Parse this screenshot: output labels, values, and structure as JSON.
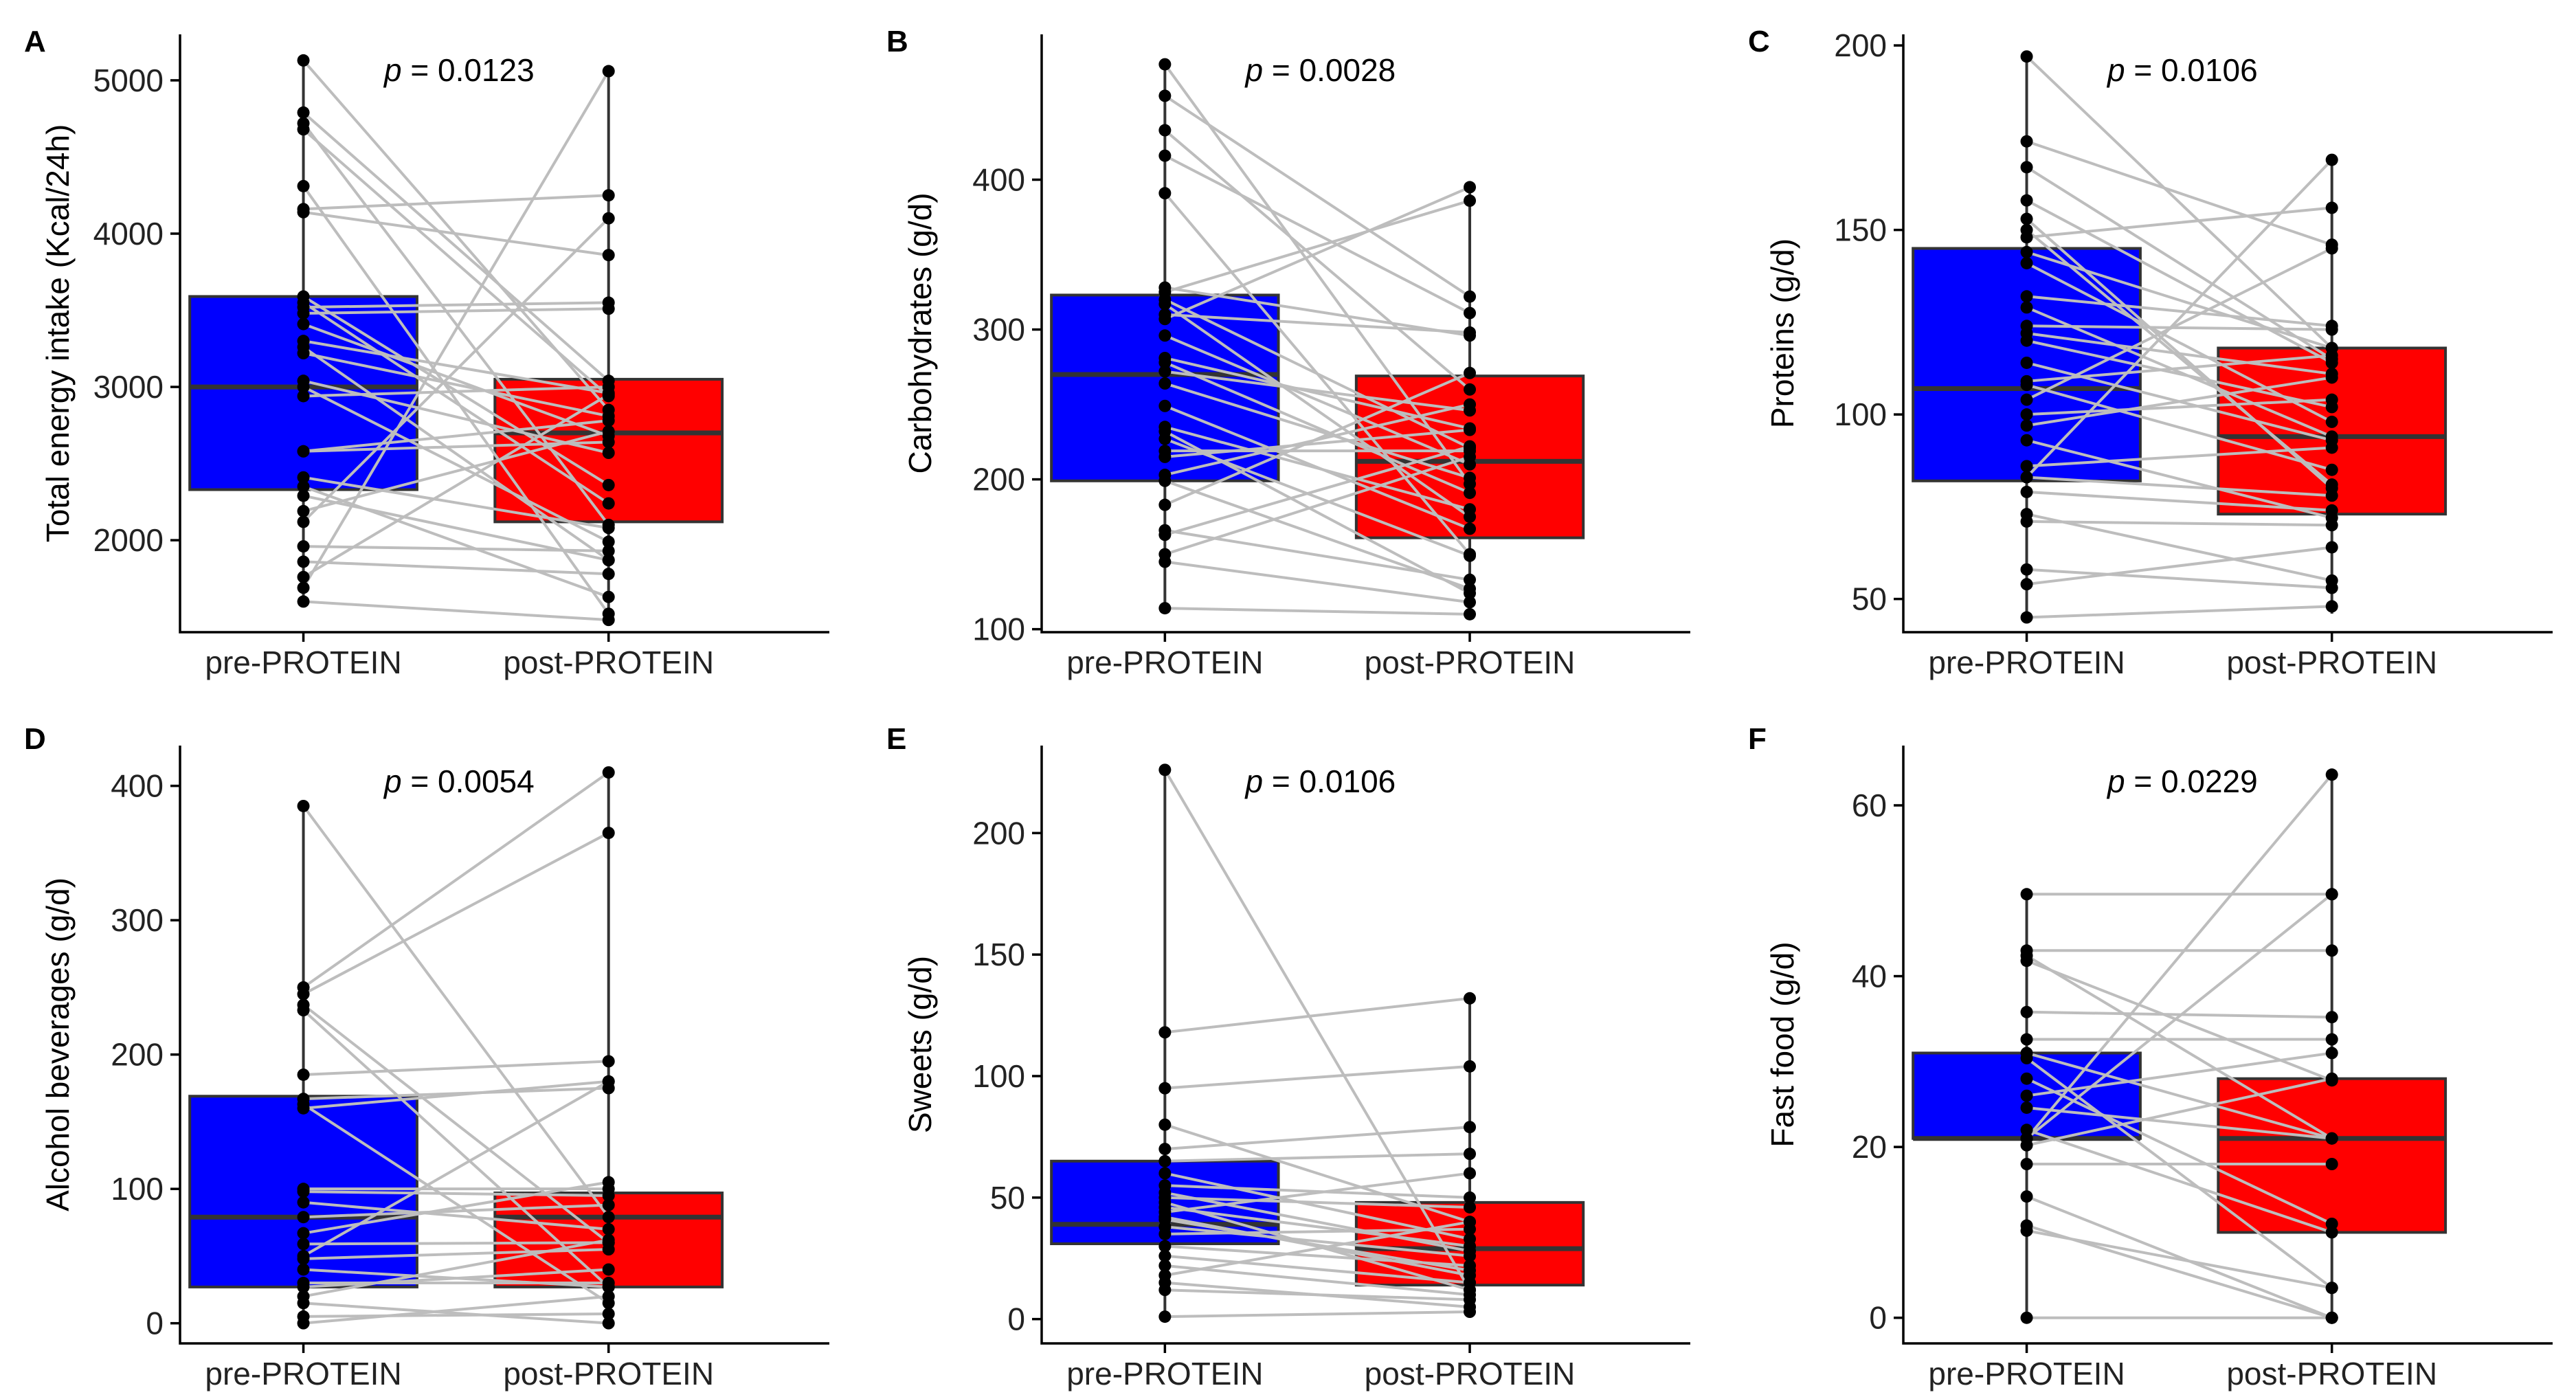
{
  "colors": {
    "pre": "#0000ff",
    "post": "#ff0000",
    "pair_line": "#bdbdbd"
  },
  "chart_data": [
    {
      "type": "box",
      "panel": "A",
      "title": "",
      "ylabel": "Total energy intake (Kcal/24h)",
      "ylim": [
        1400,
        5300
      ],
      "yticks": [
        2000,
        3000,
        4000,
        5000
      ],
      "pvalue": "= 0.0123",
      "categories": [
        "pre-PROTEIN",
        "post-PROTEIN"
      ],
      "boxes": [
        {
          "group": "pre-PROTEIN",
          "q1": 2330,
          "median": 3000,
          "q3": 3590,
          "whisker_low": 1600,
          "whisker_high": 5130
        },
        {
          "group": "post-PROTEIN",
          "q1": 2120,
          "median": 2700,
          "q3": 3050,
          "whisker_low": 1480,
          "whisker_high": 5060
        }
      ],
      "pairs": [
        [
          5130,
          2850
        ],
        [
          4790,
          3040
        ],
        [
          4720,
          2100
        ],
        [
          4680,
          2940
        ],
        [
          4310,
          1520
        ],
        [
          4160,
          4250
        ],
        [
          4140,
          3860
        ],
        [
          3590,
          2360
        ],
        [
          3550,
          2240
        ],
        [
          3520,
          3550
        ],
        [
          3480,
          3510
        ],
        [
          3410,
          2680
        ],
        [
          3300,
          2960
        ],
        [
          3260,
          1870
        ],
        [
          3220,
          2810
        ],
        [
          3040,
          2570
        ],
        [
          3000,
          1990
        ],
        [
          2940,
          3000
        ],
        [
          2580,
          2780
        ],
        [
          2580,
          2640
        ],
        [
          2410,
          2080
        ],
        [
          2350,
          1630
        ],
        [
          2290,
          1870
        ],
        [
          2190,
          2710
        ],
        [
          2120,
          4100
        ],
        [
          1960,
          1930
        ],
        [
          1860,
          1780
        ],
        [
          1760,
          2950
        ],
        [
          1690,
          5060
        ],
        [
          1600,
          1480
        ]
      ]
    },
    {
      "type": "box",
      "panel": "B",
      "title": "",
      "ylabel": "Carbohydrates (g/d)",
      "ylim": [
        98,
        497
      ],
      "yticks": [
        100,
        200,
        300,
        400
      ],
      "pvalue": "= 0.0028",
      "categories": [
        "pre-PROTEIN",
        "post-PROTEIN"
      ],
      "boxes": [
        {
          "group": "pre-PROTEIN",
          "q1": 199,
          "median": 270,
          "q3": 323,
          "whisker_low": 114,
          "whisker_high": 477
        },
        {
          "group": "post-PROTEIN",
          "q1": 161,
          "median": 212,
          "q3": 269,
          "whisker_low": 110,
          "whisker_high": 396
        }
      ],
      "pairs": [
        [
          477,
          197
        ],
        [
          456,
          322
        ],
        [
          433,
          260
        ],
        [
          416,
          311
        ],
        [
          391,
          150
        ],
        [
          328,
          296
        ],
        [
          325,
          386
        ],
        [
          320,
          221
        ],
        [
          317,
          175
        ],
        [
          310,
          298
        ],
        [
          307,
          395
        ],
        [
          296,
          210
        ],
        [
          281,
          234
        ],
        [
          272,
          246
        ],
        [
          264,
          201
        ],
        [
          249,
          167
        ],
        [
          235,
          180
        ],
        [
          227,
          149
        ],
        [
          219,
          219
        ],
        [
          215,
          233
        ],
        [
          203,
          250
        ],
        [
          183,
          271
        ],
        [
          166,
          133
        ],
        [
          163,
          222
        ],
        [
          150,
          215
        ],
        [
          145,
          118
        ],
        [
          114,
          110
        ],
        [
          199,
          127
        ],
        [
          278,
          191
        ],
        [
          232,
          124
        ]
      ]
    },
    {
      "type": "box",
      "panel": "C",
      "title": "",
      "ylabel": "Proteins (g/d)",
      "ylim": [
        41,
        203
      ],
      "yticks": [
        50,
        100,
        150,
        200
      ],
      "pvalue": "= 0.0106",
      "categories": [
        "pre-PROTEIN",
        "post-PROTEIN"
      ],
      "boxes": [
        {
          "group": "pre-PROTEIN",
          "q1": 82,
          "median": 107,
          "q3": 145,
          "whisker_low": 45,
          "whisker_high": 197
        },
        {
          "group": "post-PROTEIN",
          "q1": 73,
          "median": 94,
          "q3": 118,
          "whisker_low": 46,
          "whisker_high": 169
        }
      ],
      "pairs": [
        [
          197,
          118
        ],
        [
          174,
          146
        ],
        [
          167,
          115
        ],
        [
          158,
          114
        ],
        [
          153,
          80
        ],
        [
          150,
          81
        ],
        [
          148,
          156
        ],
        [
          144,
          118
        ],
        [
          141,
          98
        ],
        [
          132,
          124
        ],
        [
          129,
          94
        ],
        [
          124,
          123
        ],
        [
          122,
          111
        ],
        [
          120,
          102
        ],
        [
          114,
          93
        ],
        [
          109,
          116
        ],
        [
          108,
          85
        ],
        [
          104,
          145
        ],
        [
          100,
          104
        ],
        [
          97,
          110
        ],
        [
          93,
          72
        ],
        [
          86,
          91
        ],
        [
          83,
          78
        ],
        [
          79,
          74
        ],
        [
          73,
          55
        ],
        [
          71,
          70
        ],
        [
          58,
          53
        ],
        [
          54,
          64
        ],
        [
          45,
          48
        ],
        [
          83,
          169
        ]
      ]
    },
    {
      "type": "box",
      "panel": "D",
      "title": "",
      "ylabel": "Alcohol beverages (g/d)",
      "ylim": [
        -15,
        430
      ],
      "yticks": [
        0,
        100,
        200,
        300,
        400
      ],
      "pvalue": "= 0.0054",
      "categories": [
        "pre-PROTEIN",
        "post-PROTEIN"
      ],
      "boxes": [
        {
          "group": "pre-PROTEIN",
          "q1": 27,
          "median": 79,
          "q3": 169,
          "whisker_low": 0,
          "whisker_high": 385
        },
        {
          "group": "post-PROTEIN",
          "q1": 27,
          "median": 79,
          "q3": 97,
          "whisker_low": 0,
          "whisker_high": 410
        }
      ],
      "pairs": [
        [
          385,
          79
        ],
        [
          250,
          410
        ],
        [
          245,
          365
        ],
        [
          237,
          60
        ],
        [
          233,
          27
        ],
        [
          185,
          195
        ],
        [
          167,
          175
        ],
        [
          163,
          15
        ],
        [
          160,
          180
        ],
        [
          100,
          100
        ],
        [
          98,
          95
        ],
        [
          90,
          70
        ],
        [
          79,
          88
        ],
        [
          67,
          105
        ],
        [
          59,
          60
        ],
        [
          48,
          55
        ],
        [
          40,
          27
        ],
        [
          30,
          30
        ],
        [
          15,
          0
        ],
        [
          5,
          7
        ],
        [
          0,
          20
        ],
        [
          27,
          40
        ],
        [
          50,
          180
        ],
        [
          20,
          62
        ]
      ]
    },
    {
      "type": "box",
      "panel": "E",
      "title": "",
      "ylabel": "Sweets (g/d)",
      "ylim": [
        -10,
        236
      ],
      "yticks": [
        0,
        50,
        100,
        150,
        200
      ],
      "pvalue": "= 0.0106",
      "categories": [
        "pre-PROTEIN",
        "post-PROTEIN"
      ],
      "boxes": [
        {
          "group": "pre-PROTEIN",
          "q1": 31,
          "median": 39,
          "q3": 65,
          "whisker_low": 1,
          "whisker_high": 226
        },
        {
          "group": "post-PROTEIN",
          "q1": 14,
          "median": 29,
          "q3": 48,
          "whisker_low": 3,
          "whisker_high": 132
        }
      ],
      "pairs": [
        [
          226,
          12
        ],
        [
          118,
          132
        ],
        [
          95,
          104
        ],
        [
          80,
          40
        ],
        [
          70,
          79
        ],
        [
          65,
          68
        ],
        [
          60,
          33
        ],
        [
          55,
          50
        ],
        [
          52,
          28
        ],
        [
          50,
          46
        ],
        [
          46,
          30
        ],
        [
          44,
          60
        ],
        [
          41,
          20
        ],
        [
          38,
          26
        ],
        [
          35,
          37
        ],
        [
          30,
          22
        ],
        [
          26,
          15
        ],
        [
          22,
          10
        ],
        [
          18,
          40
        ],
        [
          15,
          5
        ],
        [
          12,
          8
        ],
        [
          1,
          3
        ],
        [
          42,
          18
        ],
        [
          48,
          12
        ]
      ]
    },
    {
      "type": "box",
      "panel": "F",
      "title": "",
      "ylabel": "Fast food (g/d)",
      "ylim": [
        -3,
        67
      ],
      "yticks": [
        0,
        20,
        40,
        60
      ],
      "pvalue": "= 0.0229",
      "categories": [
        "pre-PROTEIN",
        "post-PROTEIN"
      ],
      "boxes": [
        {
          "group": "pre-PROTEIN",
          "q1": 21,
          "median": 21,
          "q3": 31,
          "whisker_low": 0,
          "whisker_high": 49.6
        },
        {
          "group": "post-PROTEIN",
          "q1": 10,
          "median": 21,
          "q3": 28,
          "whisker_low": 0,
          "whisker_high": 63.6
        }
      ],
      "pairs": [
        [
          49.6,
          49.6
        ],
        [
          43,
          43
        ],
        [
          42.4,
          21
        ],
        [
          41.8,
          27.8
        ],
        [
          35.8,
          35.2
        ],
        [
          32.6,
          32.6
        ],
        [
          30.4,
          3.5
        ],
        [
          28,
          11
        ],
        [
          26,
          31
        ],
        [
          24.6,
          21
        ],
        [
          22,
          10
        ],
        [
          21,
          63.6
        ],
        [
          20.2,
          28
        ],
        [
          18,
          18
        ],
        [
          14.2,
          0
        ],
        [
          10.8,
          0
        ],
        [
          10.2,
          3.5
        ],
        [
          0,
          0
        ],
        [
          31,
          21
        ],
        [
          21,
          49.6
        ]
      ]
    }
  ]
}
